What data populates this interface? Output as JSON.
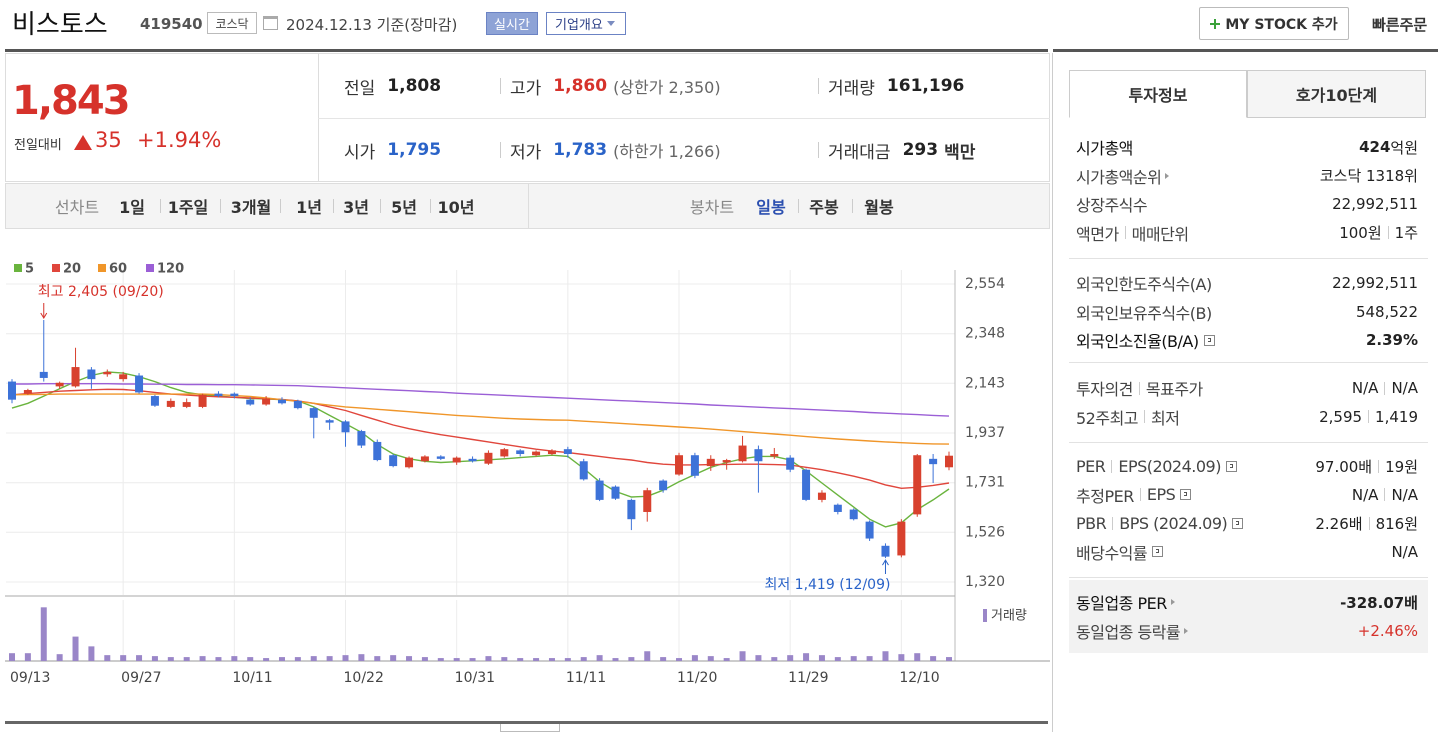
{
  "header": {
    "name": "비스토스",
    "code": "419540",
    "market": "코스닥",
    "date": "2024.12.13 기준(장마감)",
    "realtime": "실시간",
    "overview": "기업개요",
    "my_stock": "MY STOCK 추가",
    "quick_order": "빠른주문"
  },
  "price": {
    "current": "1,843",
    "change_label": "전일대비",
    "change": "35",
    "rate": "+1.94%",
    "color": "#d6322b"
  },
  "summary": [
    [
      {
        "label": "전일",
        "value": "1,808",
        "color": "#222222"
      },
      {
        "label": "고가",
        "value": "1,860",
        "note": "(상한가 2,350)",
        "color": "#d6322b"
      },
      {
        "label": "거래량",
        "value": "161,196",
        "color": "#222222"
      }
    ],
    [
      {
        "label": "시가",
        "value": "1,795",
        "color": "#2a63c8"
      },
      {
        "label": "저가",
        "value": "1,783",
        "note": "(하한가 1,266)",
        "color": "#2a63c8"
      },
      {
        "label": "거래대금",
        "value": "293",
        "unit": "백만",
        "color": "#222222"
      }
    ]
  ],
  "period_tabs": {
    "line_label": "선차트",
    "periods": [
      "1일",
      "1주일",
      "3개월",
      "1년",
      "3년",
      "5년",
      "10년"
    ],
    "candle_label": "봉차트",
    "candles": [
      "일봉",
      "주봉",
      "월봉"
    ]
  },
  "chart_data": {
    "type": "candlestick",
    "categories": [
      "09/13",
      null,
      null,
      null,
      null,
      null,
      null,
      "09/27",
      null,
      null,
      null,
      null,
      null,
      null,
      "10/11",
      null,
      null,
      null,
      null,
      null,
      null,
      "10/22",
      null,
      null,
      null,
      null,
      null,
      null,
      "10/31",
      null,
      null,
      null,
      null,
      null,
      null,
      "11/11",
      null,
      null,
      null,
      null,
      null,
      null,
      "11/20",
      null,
      null,
      null,
      null,
      null,
      null,
      "11/29",
      null,
      null,
      null,
      null,
      null,
      null,
      "12/10",
      null,
      null,
      null
    ],
    "open": [
      2150,
      2100,
      2190,
      2130,
      2130,
      2200,
      2180,
      2160,
      2175,
      2090,
      2045,
      2045,
      2045,
      2100,
      2100,
      2075,
      2055,
      2075,
      2070,
      2040,
      1990,
      1985,
      1945,
      1900,
      1845,
      1795,
      1820,
      1840,
      1815,
      1830,
      1810,
      1840,
      1865,
      1845,
      1850,
      1870,
      1820,
      1740,
      1715,
      1660,
      1610,
      1740,
      1765,
      1845,
      1800,
      1815,
      1820,
      1870,
      1840,
      1835,
      1785,
      1660,
      1640,
      1620,
      1570,
      1470,
      1430,
      1600,
      1830,
      1795
    ],
    "high": [
      2160,
      2120,
      2405,
      2150,
      2290,
      2210,
      2200,
      2190,
      2185,
      2095,
      2080,
      2080,
      2100,
      2110,
      2105,
      2085,
      2090,
      2085,
      2075,
      2045,
      1995,
      1990,
      1950,
      1910,
      1850,
      1840,
      1845,
      1845,
      1840,
      1840,
      1865,
      1875,
      1870,
      1865,
      1870,
      1880,
      1830,
      1750,
      1720,
      1665,
      1710,
      1745,
      1855,
      1855,
      1845,
      1830,
      1925,
      1885,
      1875,
      1845,
      1790,
      1700,
      1645,
      1625,
      1575,
      1480,
      1580,
      1850,
      1850,
      1860
    ],
    "low": [
      2060,
      2095,
      2150,
      2120,
      2125,
      2120,
      2170,
      2150,
      2100,
      2045,
      2040,
      2040,
      2040,
      2085,
      2080,
      2050,
      2050,
      2055,
      2035,
      1915,
      1950,
      1880,
      1875,
      1820,
      1795,
      1790,
      1815,
      1825,
      1805,
      1815,
      1805,
      1835,
      1840,
      1840,
      1845,
      1835,
      1740,
      1655,
      1660,
      1535,
      1570,
      1690,
      1760,
      1750,
      1780,
      1785,
      1815,
      1690,
      1830,
      1775,
      1655,
      1650,
      1600,
      1575,
      1490,
      1419,
      1422,
      1590,
      1730,
      1783
    ],
    "close": [
      2075,
      2115,
      2165,
      2145,
      2210,
      2160,
      2190,
      2180,
      2105,
      2050,
      2070,
      2065,
      2095,
      2090,
      2090,
      2055,
      2080,
      2060,
      2040,
      2000,
      1980,
      1940,
      1885,
      1825,
      1800,
      1835,
      1840,
      1830,
      1835,
      1820,
      1855,
      1870,
      1850,
      1860,
      1865,
      1850,
      1745,
      1660,
      1665,
      1580,
      1700,
      1700,
      1845,
      1760,
      1830,
      1825,
      1885,
      1820,
      1850,
      1785,
      1660,
      1690,
      1610,
      1580,
      1500,
      1425,
      1570,
      1845,
      1808,
      1843
    ],
    "up_color": "#d8412e",
    "down_color": "#3d72d8",
    "moving_averages": [
      {
        "name": "5",
        "color": "#6ab43e",
        "values": [
          2040,
          2060,
          2090,
          2120,
          2150,
          2175,
          2190,
          2185,
          2170,
          2150,
          2125,
          2105,
          2095,
          2090,
          2085,
          2080,
          2078,
          2075,
          2070,
          2045,
          2010,
          1975,
          1940,
          1890,
          1850,
          1830,
          1820,
          1815,
          1818,
          1822,
          1826,
          1830,
          1835,
          1840,
          1845,
          1840,
          1790,
          1735,
          1695,
          1672,
          1675,
          1700,
          1735,
          1765,
          1795,
          1815,
          1830,
          1840,
          1840,
          1825,
          1780,
          1730,
          1680,
          1630,
          1580,
          1548,
          1565,
          1620,
          1660,
          1705
        ]
      },
      {
        "name": "20",
        "color": "#e0463c",
        "values": [
          2095,
          2100,
          2105,
          2110,
          2113,
          2116,
          2118,
          2117,
          2112,
          2105,
          2098,
          2094,
          2090,
          2087,
          2085,
          2082,
          2079,
          2076,
          2070,
          2060,
          2045,
          2030,
          2010,
          1990,
          1970,
          1955,
          1942,
          1930,
          1920,
          1910,
          1900,
          1890,
          1880,
          1870,
          1862,
          1856,
          1848,
          1840,
          1832,
          1825,
          1815,
          1808,
          1805,
          1805,
          1806,
          1807,
          1808,
          1808,
          1806,
          1804,
          1795,
          1785,
          1772,
          1758,
          1742,
          1722,
          1708,
          1712,
          1720,
          1730
        ]
      },
      {
        "name": "60",
        "color": "#f0962a",
        "values": [
          2095,
          2096,
          2097,
          2098,
          2098,
          2098,
          2098,
          2098,
          2098,
          2098,
          2098,
          2098,
          2098,
          2096,
          2092,
          2088,
          2082,
          2075,
          2068,
          2060,
          2052,
          2045,
          2040,
          2035,
          2030,
          2025,
          2020,
          2015,
          2010,
          2006,
          2002,
          1998,
          1995,
          1993,
          1991,
          1990,
          1986,
          1982,
          1978,
          1974,
          1970,
          1966,
          1962,
          1958,
          1953,
          1948,
          1943,
          1938,
          1933,
          1928,
          1922,
          1917,
          1912,
          1908,
          1904,
          1900,
          1897,
          1894,
          1892,
          1891
        ]
      },
      {
        "name": "120",
        "color": "#9b5fd6",
        "values": [
          2140,
          2140,
          2141,
          2141,
          2141,
          2141,
          2141,
          2140,
          2140,
          2139,
          2139,
          2138,
          2138,
          2137,
          2137,
          2136,
          2135,
          2134,
          2133,
          2130,
          2127,
          2124,
          2121,
          2118,
          2115,
          2112,
          2109,
          2106,
          2102,
          2099,
          2096,
          2093,
          2090,
          2087,
          2084,
          2081,
          2078,
          2075,
          2072,
          2069,
          2066,
          2063,
          2060,
          2057,
          2053,
          2050,
          2047,
          2044,
          2041,
          2038,
          2035,
          2032,
          2029,
          2026,
          2022,
          2019,
          2016,
          2013,
          2010,
          2007
        ]
      }
    ],
    "volume": {
      "name": "거래량",
      "color": "#9a86c8",
      "ylim": [
        0,
        2500000
      ],
      "values": [
        320000,
        320000,
        2200000,
        280000,
        1000000,
        600000,
        240000,
        240000,
        240000,
        200000,
        160000,
        160000,
        200000,
        160000,
        200000,
        160000,
        120000,
        160000,
        160000,
        200000,
        200000,
        240000,
        280000,
        200000,
        240000,
        200000,
        160000,
        120000,
        120000,
        120000,
        200000,
        160000,
        120000,
        120000,
        120000,
        120000,
        160000,
        240000,
        120000,
        160000,
        400000,
        160000,
        120000,
        240000,
        200000,
        120000,
        400000,
        240000,
        160000,
        240000,
        320000,
        240000,
        160000,
        200000,
        200000,
        400000,
        280000,
        320000,
        200000,
        161196
      ]
    },
    "ylim": [
      1320,
      2554
    ],
    "yticks": [
      {
        "value": 1320,
        "label": "1,320"
      },
      {
        "value": 1526,
        "label": "1,526"
      },
      {
        "value": 1731,
        "label": "1,731"
      },
      {
        "value": 1937,
        "label": "1,937"
      },
      {
        "value": 2143,
        "label": "2,143"
      },
      {
        "value": 2348,
        "label": "2,348"
      },
      {
        "value": 2554,
        "label": "2,554"
      }
    ],
    "grid": true,
    "annotations": [
      {
        "label": "최고 2,405 (09/20)",
        "value": 2405,
        "kind": "high",
        "color": "#d6322b"
      },
      {
        "label": "최저 1,419 (12/09)",
        "value": 1419,
        "kind": "low",
        "color": "#2a63c8"
      }
    ]
  },
  "info_tabs": [
    "투자정보",
    "호가10단계"
  ],
  "info_sections": [
    [
      {
        "label": [
          "시가총액"
        ],
        "value": [
          "424"
        ],
        "unit": "억원",
        "bold": true
      },
      {
        "label": [
          "시가총액순위"
        ],
        "link": true,
        "value": [
          "코스닥 1318위"
        ]
      },
      {
        "label": [
          "상장주식수"
        ],
        "value": [
          "22,992,511"
        ]
      },
      {
        "label": [
          "액면가",
          "매매단위"
        ],
        "value": [
          "100원",
          "1주"
        ]
      }
    ],
    [
      {
        "label": [
          "외국인한도주식수(A)"
        ],
        "value": [
          "22,992,511"
        ]
      },
      {
        "label": [
          "외국인보유주식수(B)"
        ],
        "value": [
          "548,522"
        ]
      },
      {
        "label": [
          "외국인소진율(B/A)"
        ],
        "help": true,
        "value": [
          "2.39%"
        ],
        "bold": true
      }
    ],
    [
      {
        "label": [
          "투자의견",
          "목표주가"
        ],
        "value": [
          "N/A",
          "N/A"
        ]
      },
      {
        "label": [
          "52주최고",
          "최저"
        ],
        "value": [
          "2,595",
          "1,419"
        ]
      }
    ],
    [
      {
        "label": [
          "PER",
          "EPS(2024.09)"
        ],
        "help": true,
        "value": [
          "97.00배",
          "19원"
        ]
      },
      {
        "label": [
          "추정PER",
          "EPS"
        ],
        "help": true,
        "value": [
          "N/A",
          "N/A"
        ]
      },
      {
        "label": [
          "PBR",
          "BPS (2024.09)"
        ],
        "help": true,
        "value": [
          "2.26배",
          "816원"
        ]
      },
      {
        "label": [
          "배당수익률"
        ],
        "help": true,
        "value": [
          "N/A"
        ]
      }
    ],
    [
      {
        "label": [
          "동일업종 PER"
        ],
        "link": true,
        "value": [
          "-328.07배"
        ],
        "bold": true
      },
      {
        "label": [
          "동일업종 등락률"
        ],
        "link": true,
        "value": [
          "+2.46%"
        ],
        "color": "#d6322b"
      }
    ]
  ]
}
